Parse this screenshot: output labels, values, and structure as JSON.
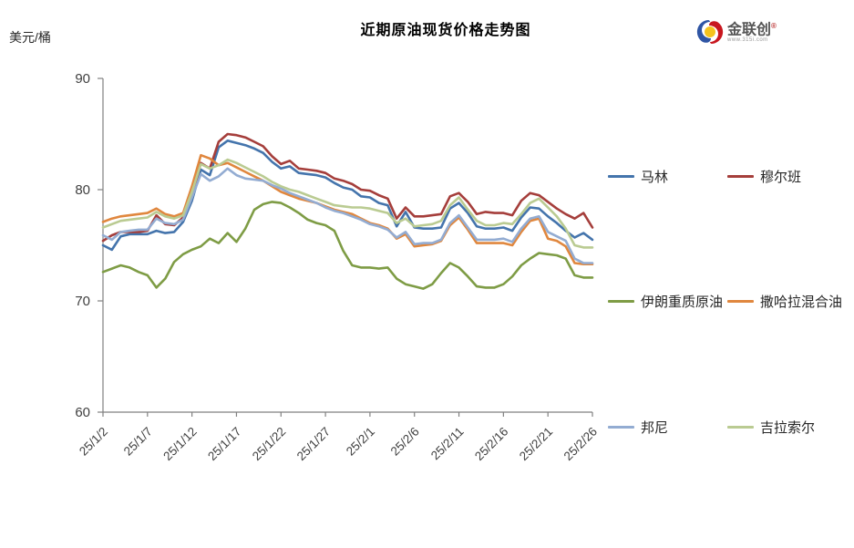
{
  "header": {
    "title": "近期原油现货价格走势图",
    "unit_label": "美元/桶",
    "logo": {
      "brand": "金联创",
      "reg_mark": "®",
      "url": "www.315i.com"
    }
  },
  "chart_data": {
    "type": "line",
    "title": "近期原油现货价格走势图",
    "ylabel": "美元/桶",
    "xlabel": "",
    "ylim": [
      60,
      90
    ],
    "y_ticks": [
      60,
      70,
      80,
      90
    ],
    "grid": false,
    "legend_position": "right",
    "x_tick_labels": [
      "25/1/2",
      "25/1/7",
      "25/1/12",
      "25/1/17",
      "25/1/22",
      "25/1/27",
      "25/2/1",
      "25/2/6",
      "25/2/11",
      "25/2/16",
      "25/2/21",
      "25/2/26"
    ],
    "x_tick_indices": [
      0,
      5,
      10,
      15,
      20,
      25,
      30,
      35,
      40,
      45,
      50,
      55
    ],
    "axis_color": "#808080",
    "tick_label_color": "#404040",
    "series": [
      {
        "name": "马林",
        "color": "#4474ac",
        "values": [
          75.0,
          74.6,
          75.8,
          76.0,
          76.0,
          76.0,
          76.3,
          76.1,
          76.2,
          77.1,
          79.0,
          81.8,
          81.3,
          83.8,
          84.4,
          84.2,
          84.0,
          83.7,
          83.3,
          82.5,
          81.9,
          82.1,
          81.5,
          81.4,
          81.3,
          81.1,
          80.6,
          80.2,
          80.0,
          79.4,
          79.3,
          78.8,
          78.6,
          76.7,
          78.0,
          76.6,
          76.5,
          76.5,
          76.6,
          78.3,
          78.8,
          77.9,
          76.7,
          76.5,
          76.5,
          76.6,
          76.3,
          77.5,
          78.4,
          78.3,
          77.6,
          77.0,
          76.3,
          75.7,
          76.1,
          75.5
        ]
      },
      {
        "name": "穆尔班",
        "color": "#a53e3b",
        "values": [
          75.4,
          75.9,
          76.2,
          76.2,
          76.2,
          76.3,
          77.7,
          76.9,
          76.8,
          77.5,
          79.5,
          82.4,
          81.9,
          84.3,
          85.0,
          84.9,
          84.7,
          84.3,
          83.9,
          83.0,
          82.3,
          82.6,
          81.9,
          81.8,
          81.7,
          81.5,
          81.0,
          80.8,
          80.5,
          80.0,
          79.9,
          79.5,
          79.2,
          77.4,
          78.4,
          77.6,
          77.6,
          77.7,
          77.8,
          79.4,
          79.7,
          78.9,
          77.8,
          78.0,
          77.9,
          77.9,
          77.7,
          79.0,
          79.7,
          79.5,
          78.9,
          78.3,
          77.8,
          77.4,
          77.9,
          76.6
        ]
      },
      {
        "name": "伊朗重质原油",
        "color": "#7e9c45",
        "values": [
          72.6,
          72.9,
          73.2,
          73.0,
          72.6,
          72.3,
          71.2,
          72.0,
          73.5,
          74.2,
          74.6,
          74.9,
          75.6,
          75.2,
          76.1,
          75.3,
          76.5,
          78.2,
          78.7,
          78.9,
          78.8,
          78.4,
          77.9,
          77.3,
          77.0,
          76.8,
          76.3,
          74.5,
          73.2,
          73.0,
          73.0,
          72.9,
          73.0,
          72.0,
          71.5,
          71.3,
          71.1,
          71.5,
          72.5,
          73.4,
          73.0,
          72.2,
          71.3,
          71.2,
          71.2,
          71.5,
          72.2,
          73.2,
          73.8,
          74.3,
          74.2,
          74.1,
          73.8,
          72.3,
          72.1,
          72.1
        ]
      },
      {
        "name": "撒哈拉混合油",
        "color": "#e0873e",
        "values": [
          77.1,
          77.4,
          77.6,
          77.7,
          77.8,
          77.9,
          78.3,
          77.8,
          77.6,
          77.9,
          80.3,
          83.1,
          82.8,
          82.2,
          82.4,
          82.0,
          81.6,
          81.2,
          80.8,
          80.3,
          79.8,
          79.5,
          79.2,
          79.0,
          78.8,
          78.5,
          78.2,
          78.0,
          77.8,
          77.4,
          77.0,
          76.8,
          76.5,
          75.6,
          76.0,
          74.9,
          75.0,
          75.1,
          75.4,
          76.8,
          77.5,
          76.4,
          75.2,
          75.2,
          75.2,
          75.2,
          75.0,
          76.2,
          77.2,
          77.4,
          75.6,
          75.4,
          74.9,
          73.4,
          73.3,
          73.3
        ]
      },
      {
        "name": "邦尼",
        "color": "#93acd2",
        "values": [
          75.9,
          75.5,
          76.2,
          76.3,
          76.4,
          76.4,
          77.4,
          77.0,
          76.9,
          77.3,
          79.3,
          81.4,
          80.8,
          81.2,
          81.9,
          81.3,
          81.0,
          80.9,
          80.8,
          80.4,
          80.1,
          79.7,
          79.4,
          79.1,
          78.8,
          78.4,
          78.1,
          77.9,
          77.6,
          77.3,
          76.9,
          76.7,
          76.4,
          75.7,
          76.2,
          75.1,
          75.2,
          75.2,
          75.5,
          77.0,
          77.7,
          76.6,
          75.5,
          75.5,
          75.5,
          75.6,
          75.3,
          76.5,
          77.4,
          77.6,
          76.2,
          75.8,
          75.4,
          73.8,
          73.4,
          73.4
        ]
      },
      {
        "name": "吉拉索尔",
        "color": "#bacb92",
        "values": [
          76.6,
          76.9,
          77.2,
          77.3,
          77.4,
          77.5,
          78.0,
          77.6,
          77.4,
          77.7,
          79.8,
          82.3,
          81.9,
          82.2,
          82.7,
          82.4,
          82.0,
          81.6,
          81.2,
          80.7,
          80.3,
          80.0,
          79.8,
          79.5,
          79.2,
          78.9,
          78.6,
          78.5,
          78.4,
          78.4,
          78.3,
          78.1,
          77.9,
          77.0,
          77.4,
          76.7,
          76.8,
          76.9,
          77.2,
          78.6,
          79.3,
          78.2,
          77.2,
          76.8,
          76.8,
          77.0,
          76.9,
          77.8,
          78.8,
          79.2,
          78.4,
          77.6,
          76.5,
          75.0,
          74.8,
          74.8
        ]
      }
    ]
  }
}
